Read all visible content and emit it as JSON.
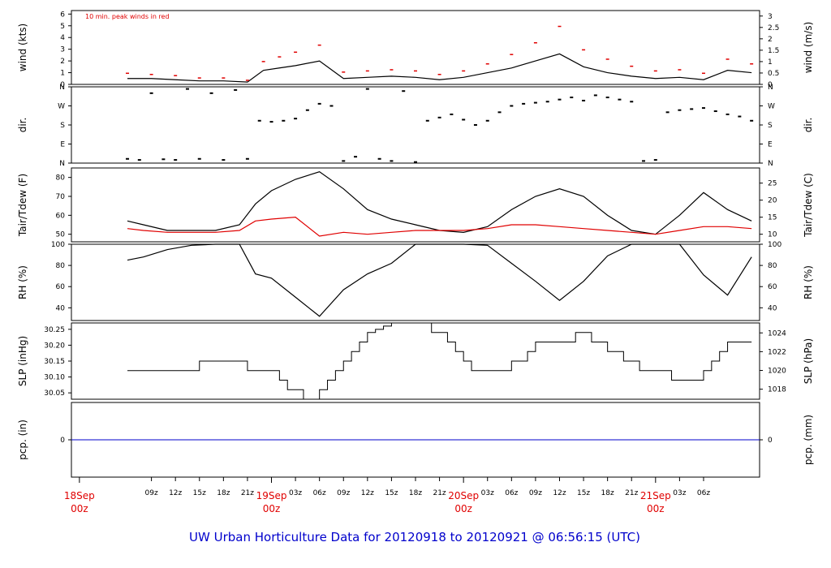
{
  "title": "UW Urban Horticulture Data for 20120918  to  20120921 @ 06:56:15  (UTC)",
  "chart_data": [
    {
      "type": "line",
      "id": "wind",
      "ylabel_left": "wind (kts)",
      "ylabel_right": "wind (m/s)",
      "ylim": [
        0,
        6.3
      ],
      "yticks_left": [
        0,
        1,
        2,
        3,
        4,
        5,
        6
      ],
      "yticks_right": [
        0,
        0.5,
        1,
        1.5,
        2,
        2.5,
        3
      ],
      "annotation": "10 min. peak winds in red",
      "series": [
        {
          "name": "mean wind",
          "color": "#000000",
          "x": [
            0,
            3,
            6,
            9,
            12,
            15,
            17,
            19,
            21,
            24,
            27,
            30,
            33,
            36,
            39,
            42,
            45,
            48,
            51,
            54,
            57,
            60,
            63,
            66,
            69,
            72,
            75,
            78
          ],
          "values": [
            0.5,
            0.5,
            0.4,
            0.3,
            0.3,
            0.2,
            1.2,
            1.4,
            1.6,
            2.0,
            0.5,
            0.6,
            0.7,
            0.6,
            0.4,
            0.6,
            1.0,
            1.4,
            2.0,
            2.6,
            1.5,
            1.0,
            0.7,
            0.5,
            0.6,
            0.4,
            1.2,
            1.0
          ]
        },
        {
          "name": "10 min. peak",
          "color": "#e00000",
          "x": [
            0,
            3,
            6,
            9,
            12,
            15,
            17,
            19,
            21,
            24,
            27,
            30,
            33,
            36,
            39,
            42,
            45,
            48,
            51,
            54,
            57,
            60,
            63,
            66,
            69,
            72,
            75,
            78
          ],
          "values": [
            1.0,
            0.9,
            0.8,
            0.6,
            0.6,
            0.4,
            2.0,
            2.4,
            2.8,
            3.4,
            1.1,
            1.2,
            1.3,
            1.2,
            0.9,
            1.2,
            1.8,
            2.6,
            3.6,
            5.0,
            3.0,
            2.2,
            1.6,
            1.2,
            1.3,
            1.0,
            2.2,
            1.8
          ]
        }
      ]
    },
    {
      "type": "scatter",
      "id": "dir",
      "ylabel_left": "dir.",
      "ylabel_right": "dir.",
      "ylim": [
        0,
        360
      ],
      "yticks_left": [
        "N",
        "E",
        "S",
        "W",
        "N"
      ],
      "yticks_right": [
        "N",
        "E",
        "S",
        "W",
        "N"
      ],
      "x": [
        0,
        1.5,
        3,
        4.5,
        6,
        7.5,
        9,
        10.5,
        12,
        13.5,
        15,
        16.5,
        18,
        19.5,
        21,
        22.5,
        24,
        25.5,
        27,
        28.5,
        30,
        31.5,
        33,
        34.5,
        36,
        37.5,
        39,
        40.5,
        42,
        43.5,
        45,
        46.5,
        48,
        49.5,
        51,
        52.5,
        54,
        55.5,
        57,
        58.5,
        60,
        61.5,
        63,
        64.5,
        66,
        67.5,
        69,
        70.5,
        72,
        73.5,
        75,
        76.5,
        78
      ],
      "values": [
        20,
        15,
        330,
        18,
        15,
        350,
        20,
        330,
        15,
        345,
        20,
        200,
        195,
        200,
        210,
        250,
        280,
        270,
        10,
        30,
        350,
        20,
        10,
        340,
        5,
        200,
        215,
        230,
        205,
        180,
        200,
        240,
        270,
        280,
        285,
        290,
        300,
        310,
        295,
        320,
        310,
        300,
        290,
        10,
        15,
        240,
        250,
        255,
        260,
        245,
        230,
        220,
        200
      ]
    },
    {
      "type": "line",
      "id": "temp",
      "ylabel_left": "Tair/Tdew (F)",
      "ylabel_right": "Tair/Tdew (C)",
      "ylim": [
        46,
        85
      ],
      "yticks_left": [
        50,
        60,
        70,
        80
      ],
      "yticks_right": [
        10,
        15,
        20,
        25
      ],
      "series": [
        {
          "name": "Tair",
          "color": "#000000",
          "x": [
            0,
            2,
            5,
            8,
            11,
            14,
            16,
            18,
            21,
            24,
            27,
            30,
            33,
            36,
            39,
            42,
            45,
            48,
            51,
            54,
            57,
            60,
            63,
            66,
            69,
            72,
            75,
            78
          ],
          "values": [
            57,
            55,
            52,
            52,
            52,
            55,
            66,
            73,
            79,
            83,
            74,
            63,
            58,
            55,
            52,
            51,
            54,
            63,
            70,
            74,
            70,
            60,
            52,
            50,
            60,
            72,
            63,
            57
          ]
        },
        {
          "name": "Tdew",
          "color": "#e00000",
          "x": [
            0,
            2,
            5,
            8,
            11,
            14,
            16,
            18,
            21,
            24,
            27,
            30,
            33,
            36,
            39,
            42,
            45,
            48,
            51,
            54,
            57,
            60,
            63,
            66,
            69,
            72,
            75,
            78
          ],
          "values": [
            53,
            52,
            51,
            51,
            51,
            52,
            57,
            58,
            59,
            49,
            51,
            50,
            51,
            52,
            52,
            52,
            53,
            55,
            55,
            54,
            53,
            52,
            51,
            50,
            52,
            54,
            54,
            53
          ]
        }
      ]
    },
    {
      "type": "line",
      "id": "rh",
      "ylabel_left": "RH (%)",
      "ylabel_right": "RH (%)",
      "ylim": [
        28,
        100
      ],
      "yticks_left": [
        40,
        60,
        80,
        100
      ],
      "yticks_right": [
        40,
        60,
        80,
        100
      ],
      "series": [
        {
          "name": "RH",
          "color": "#000000",
          "x": [
            0,
            2,
            5,
            8,
            11,
            14,
            16,
            18,
            21,
            24,
            27,
            30,
            33,
            36,
            39,
            42,
            45,
            48,
            51,
            54,
            57,
            60,
            63,
            66,
            69,
            72,
            75,
            78
          ],
          "values": [
            85,
            88,
            95,
            99,
            100,
            100,
            72,
            68,
            50,
            32,
            57,
            72,
            82,
            100,
            100,
            100,
            99,
            82,
            65,
            47,
            65,
            89,
            100,
            100,
            100,
            71,
            52,
            88
          ]
        }
      ]
    },
    {
      "type": "line",
      "id": "slp",
      "ylabel_left": "SLP (inHg)",
      "ylabel_right": "SLP (hPa)",
      "ylim": [
        30.03,
        30.27
      ],
      "yticks_left": [
        30.05,
        30.1,
        30.15,
        30.2,
        30.25
      ],
      "yticks_right": [
        1018,
        1020,
        1022,
        1024
      ],
      "series": [
        {
          "name": "SLP",
          "color": "#000000",
          "x": [
            0,
            5,
            9,
            12,
            13,
            15,
            16,
            17,
            19,
            20,
            21,
            22,
            23,
            24,
            25,
            26,
            27,
            28,
            29,
            30,
            31,
            32,
            33,
            34,
            35,
            36,
            38,
            40,
            41,
            42,
            43,
            45,
            48,
            50,
            51,
            52,
            56,
            58,
            60,
            62,
            64,
            68,
            70,
            72,
            73,
            74,
            75,
            76,
            77,
            78
          ],
          "values": [
            30.12,
            30.12,
            30.15,
            30.15,
            30.15,
            30.12,
            30.12,
            30.12,
            30.09,
            30.06,
            30.06,
            30.03,
            30.03,
            30.06,
            30.09,
            30.12,
            30.15,
            30.18,
            30.21,
            30.24,
            30.25,
            30.26,
            30.27,
            30.27,
            30.27,
            30.27,
            30.24,
            30.21,
            30.18,
            30.15,
            30.12,
            30.12,
            30.15,
            30.18,
            30.21,
            30.21,
            30.24,
            30.21,
            30.18,
            30.15,
            30.12,
            30.09,
            30.09,
            30.12,
            30.15,
            30.18,
            30.21,
            30.21,
            30.21,
            30.21
          ]
        }
      ]
    },
    {
      "type": "line",
      "id": "pcp",
      "ylabel_left": "pcp. (in)",
      "ylabel_right": "pcp. (mm)",
      "ylim": [
        -1,
        1
      ],
      "yticks_left": [
        0
      ],
      "yticks_right": [
        0
      ],
      "series": [
        {
          "name": "pcp",
          "color": "#0000cc",
          "x": [
            0,
            78
          ],
          "values": [
            0,
            0
          ]
        }
      ]
    }
  ],
  "x_axis": {
    "hour_labels": [
      "09z",
      "12z",
      "15z",
      "18z",
      "21z",
      "03z",
      "06z",
      "09z",
      "12z",
      "15z",
      "18z",
      "21z",
      "03z",
      "06z",
      "09z",
      "12z",
      "15z",
      "18z",
      "21z",
      "03z",
      "06z"
    ],
    "hour_values": [
      3,
      6,
      9,
      12,
      15,
      21,
      24,
      27,
      30,
      33,
      36,
      39,
      45,
      48,
      51,
      54,
      57,
      60,
      63,
      69,
      72
    ],
    "date_labels": [
      {
        "date": "18Sep",
        "time": "00z",
        "x": -6
      },
      {
        "date": "19Sep",
        "time": "00z",
        "x": 18
      },
      {
        "date": "20Sep",
        "time": "00z",
        "x": 42
      },
      {
        "date": "21Sep",
        "time": "00z",
        "x": 66
      }
    ]
  }
}
